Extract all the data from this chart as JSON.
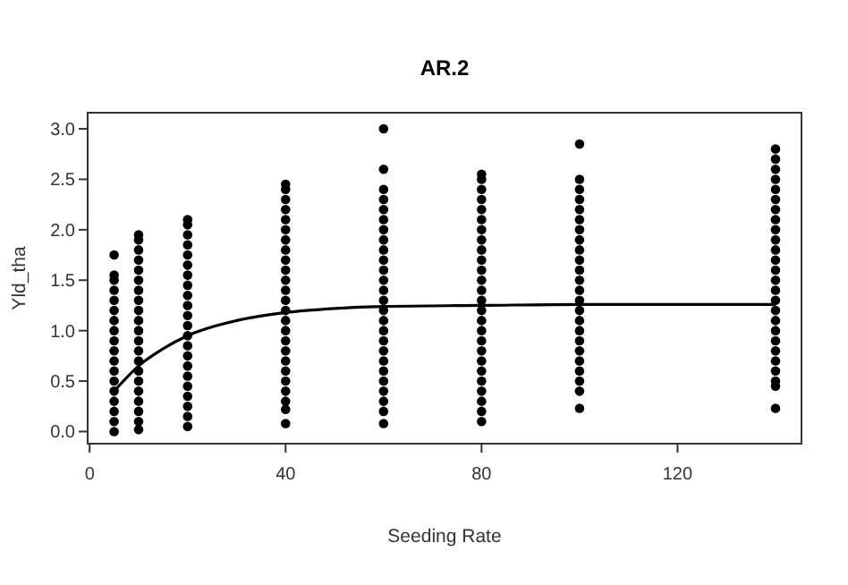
{
  "chart_data": {
    "type": "scatter",
    "title": "AR.2",
    "xlabel": "Seeding Rate",
    "ylabel": "Yld_tha",
    "xlim": [
      -0.4,
      145.3
    ],
    "xticks": [
      0,
      40,
      80,
      120
    ],
    "ylim": [
      -0.12,
      3.16
    ],
    "yticks": [
      {
        "value": 0,
        "label": "0.0"
      },
      {
        "value": 0.5,
        "label": "0.5"
      },
      {
        "value": 1,
        "label": "1.0"
      },
      {
        "value": 1.5,
        "label": "1.5"
      },
      {
        "value": 2,
        "label": "2.0"
      },
      {
        "value": 2.5,
        "label": "2.5"
      },
      {
        "value": 3,
        "label": "3.0"
      }
    ],
    "grid": false,
    "marker": "circle",
    "series": [
      {
        "color": "#000000",
        "x": [
          5,
          5,
          5,
          5,
          5,
          5,
          5,
          5,
          5,
          5,
          5,
          5,
          5,
          5,
          5,
          5,
          5,
          5,
          10,
          10,
          10,
          10,
          10,
          10,
          10,
          10,
          10,
          10,
          10,
          10,
          10,
          10,
          10,
          10,
          10,
          10,
          10,
          10,
          10,
          20,
          20,
          20,
          20,
          20,
          20,
          20,
          20,
          20,
          20,
          20,
          20,
          20,
          20,
          20,
          20,
          20,
          20,
          20,
          20,
          20,
          20,
          40,
          40,
          40,
          40,
          40,
          40,
          40,
          40,
          40,
          40,
          40,
          40,
          40,
          40,
          40,
          40,
          40,
          40,
          40,
          40,
          40,
          40,
          40,
          40,
          40,
          60,
          60,
          60,
          60,
          60,
          60,
          60,
          60,
          60,
          60,
          60,
          60,
          60,
          60,
          60,
          60,
          60,
          60,
          60,
          60,
          60,
          60,
          60,
          60,
          60,
          60,
          80,
          80,
          80,
          80,
          80,
          80,
          80,
          80,
          80,
          80,
          80,
          80,
          80,
          80,
          80,
          80,
          80,
          80,
          80,
          80,
          80,
          80,
          80,
          80,
          80,
          80,
          100,
          100,
          100,
          100,
          100,
          100,
          100,
          100,
          100,
          100,
          100,
          100,
          100,
          100,
          100,
          100,
          100,
          100,
          100,
          100,
          100,
          100,
          100,
          100,
          140,
          140,
          140,
          140,
          140,
          140,
          140,
          140,
          140,
          140,
          140,
          140,
          140,
          140,
          140,
          140,
          140,
          140,
          140,
          140,
          140,
          140,
          140,
          140,
          140,
          140
        ],
        "values": [
          0,
          0.1,
          0.2,
          0.3,
          0.4,
          0.5,
          0.6,
          0.7,
          0.8,
          0.9,
          1.0,
          1.1,
          1.2,
          1.3,
          1.4,
          1.5,
          1.55,
          1.75,
          0.02,
          0.1,
          0.2,
          0.3,
          0.4,
          0.5,
          0.6,
          0.7,
          0.8,
          0.9,
          1.0,
          1.1,
          1.2,
          1.3,
          1.4,
          1.5,
          1.6,
          1.7,
          1.8,
          1.9,
          1.95,
          0.05,
          0.15,
          0.25,
          0.35,
          0.45,
          0.55,
          0.65,
          0.75,
          0.85,
          0.95,
          1.05,
          1.15,
          1.25,
          1.35,
          1.45,
          1.55,
          1.65,
          1.75,
          1.85,
          1.95,
          2.05,
          2.1,
          0.08,
          0.22,
          0.3,
          0.4,
          0.5,
          0.6,
          0.7,
          0.8,
          0.9,
          1.0,
          1.1,
          1.2,
          1.3,
          1.4,
          1.5,
          1.6,
          1.7,
          1.8,
          1.9,
          2.0,
          2.1,
          2.2,
          2.3,
          2.4,
          2.45,
          0.08,
          0.2,
          0.3,
          0.4,
          0.5,
          0.6,
          0.7,
          0.8,
          0.9,
          1.0,
          1.1,
          1.2,
          1.3,
          1.4,
          1.5,
          1.6,
          1.7,
          1.8,
          1.9,
          2.0,
          2.1,
          2.2,
          2.3,
          2.4,
          2.6,
          3.0,
          0.1,
          0.2,
          0.3,
          0.4,
          0.5,
          0.6,
          0.7,
          0.8,
          0.9,
          1.0,
          1.1,
          1.2,
          1.3,
          1.4,
          1.5,
          1.6,
          1.7,
          1.8,
          1.9,
          2.0,
          2.1,
          2.2,
          2.3,
          2.4,
          2.5,
          2.55,
          0.23,
          0.4,
          0.5,
          0.6,
          0.7,
          0.8,
          0.9,
          1.0,
          1.1,
          1.2,
          1.3,
          1.4,
          1.5,
          1.6,
          1.7,
          1.8,
          1.9,
          2.0,
          2.1,
          2.2,
          2.3,
          2.4,
          2.5,
          2.85,
          0.23,
          0.45,
          0.5,
          0.6,
          0.7,
          0.8,
          0.9,
          1.0,
          1.1,
          1.2,
          1.3,
          1.4,
          1.5,
          1.6,
          1.7,
          1.8,
          1.9,
          2.0,
          2.1,
          2.2,
          2.3,
          2.4,
          2.5,
          2.6,
          2.7,
          2.8
        ]
      },
      {
        "type": "line",
        "color": "#000000",
        "line_style": "solid",
        "marker": "none",
        "x": [
          5,
          10,
          15,
          20,
          30,
          40,
          50,
          60,
          80,
          100,
          140
        ],
        "values": [
          0.4,
          0.65,
          0.82,
          0.95,
          1.1,
          1.18,
          1.22,
          1.24,
          1.25,
          1.26,
          1.26
        ]
      }
    ]
  }
}
